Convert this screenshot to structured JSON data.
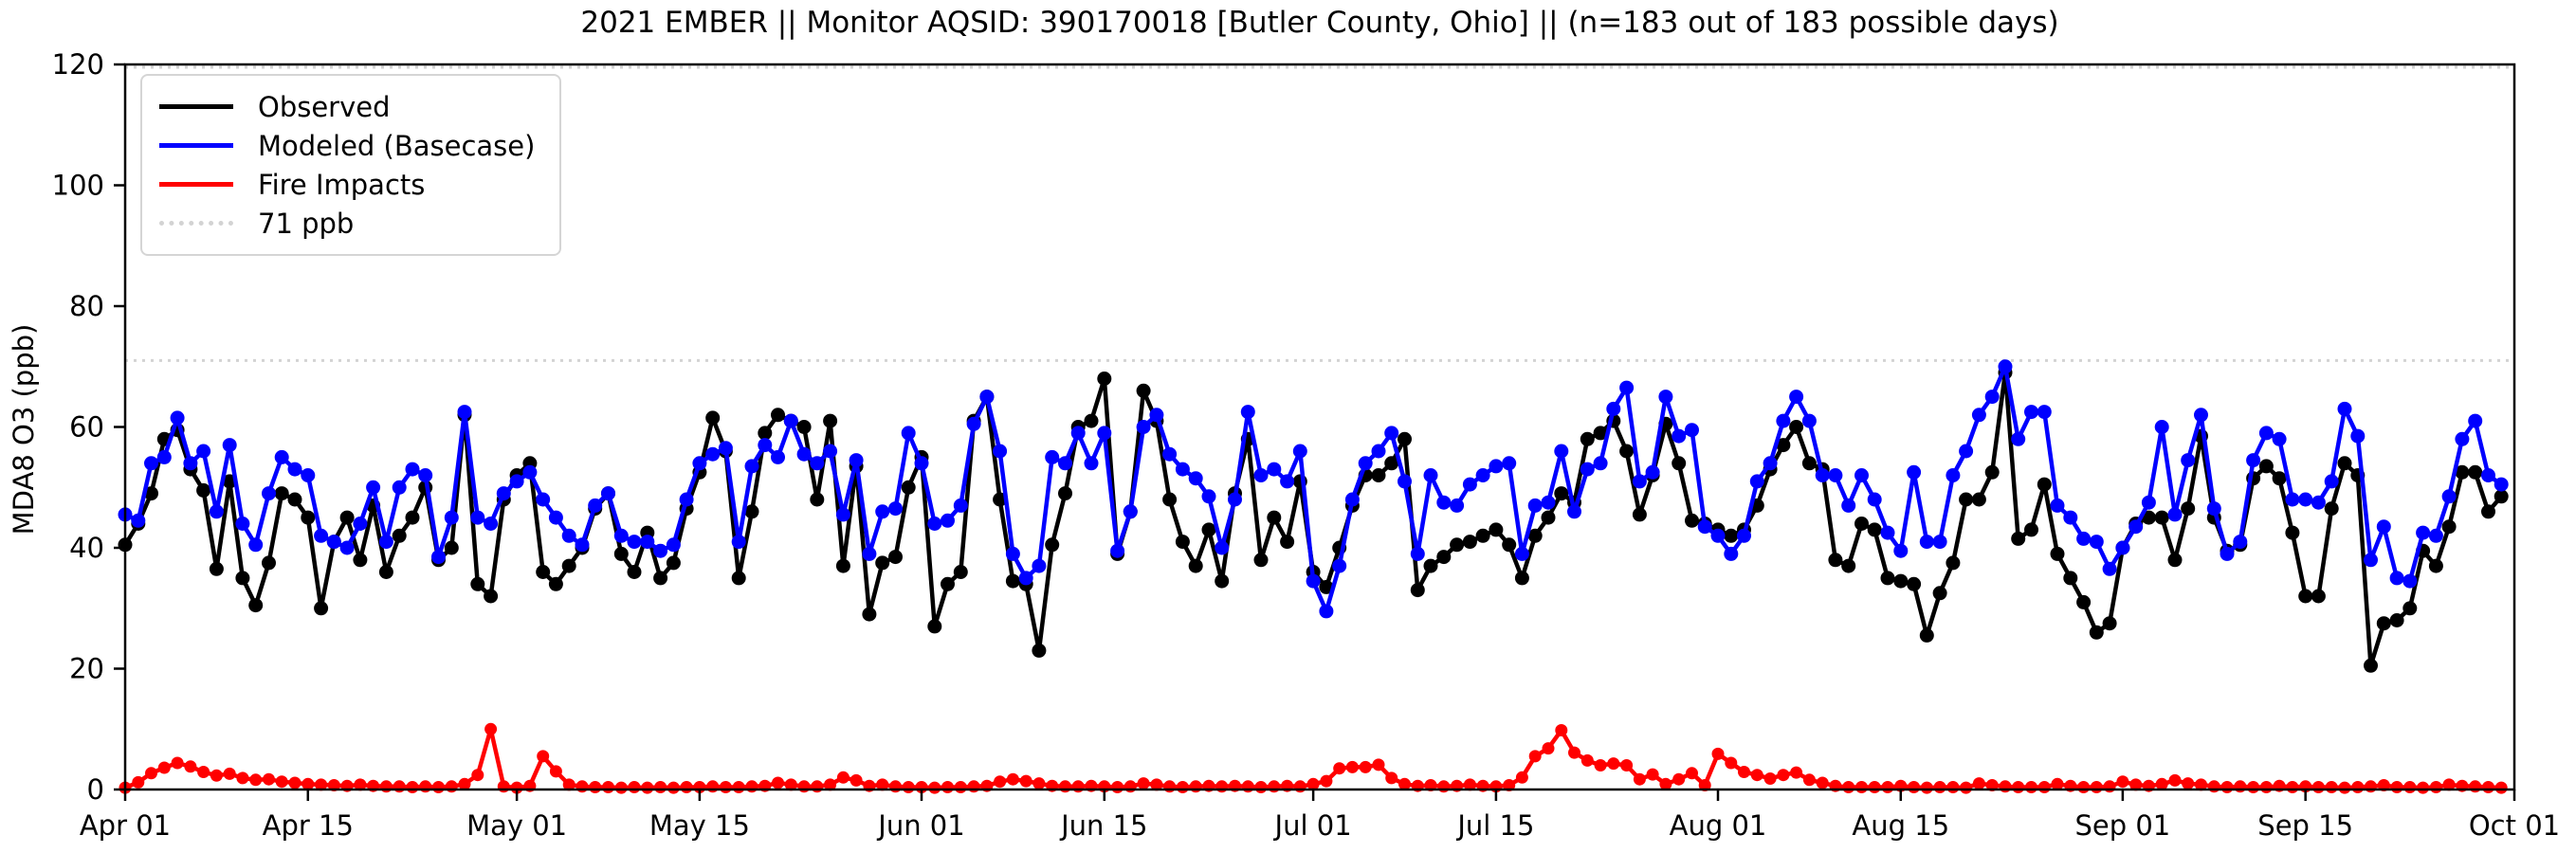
{
  "chart_data": {
    "type": "line",
    "title": "2021 EMBER || Monitor AQSID: 390170018 [Butler County, Ohio] || (n=183 out of 183 possible days)",
    "ylabel": "MDA8 O3 (ppb)",
    "ylim": [
      0,
      120
    ],
    "y_ticks": [
      0,
      20,
      40,
      60,
      80,
      100,
      120
    ],
    "xlim_days": [
      0,
      183
    ],
    "x_start_date": "Apr 01",
    "x_end_date": "Oct 01",
    "x_ticks": [
      {
        "label": "Apr 01",
        "day": 0
      },
      {
        "label": "Apr 15",
        "day": 14
      },
      {
        "label": "May 01",
        "day": 30
      },
      {
        "label": "May 15",
        "day": 44
      },
      {
        "label": "Jun 01",
        "day": 61
      },
      {
        "label": "Jun 15",
        "day": 75
      },
      {
        "label": "Jul 01",
        "day": 91
      },
      {
        "label": "Jul 15",
        "day": 105
      },
      {
        "label": "Aug 01",
        "day": 122
      },
      {
        "label": "Aug 15",
        "day": 136
      },
      {
        "label": "Sep 01",
        "day": 153
      },
      {
        "label": "Sep 15",
        "day": 167
      },
      {
        "label": "Oct 01",
        "day": 183
      }
    ],
    "grid": false,
    "legend_position": "upper left",
    "threshold": {
      "label": "71 ppb",
      "value": 71,
      "color": "#d3d3d3",
      "style": "dotted"
    },
    "top_reference_value": 120,
    "series": [
      {
        "name": "Observed",
        "color": "#000000",
        "values": [
          40.5,
          44,
          49,
          58,
          59.5,
          53,
          49.5,
          36.5,
          51,
          35,
          30.5,
          37.5,
          49,
          48,
          45,
          30,
          41,
          45,
          38,
          47,
          36,
          42,
          45,
          50,
          38,
          40,
          62,
          34,
          32,
          48,
          52,
          54,
          36,
          34,
          37,
          40,
          46.5,
          49,
          39,
          36,
          42.5,
          35,
          37.5,
          46.5,
          52.5,
          61.5,
          56,
          35,
          46,
          59,
          62,
          61,
          60,
          48,
          61,
          37,
          53.5,
          29,
          37.5,
          38.5,
          50,
          55,
          27,
          34,
          36,
          61,
          65,
          48,
          34.5,
          34,
          23,
          40.5,
          49,
          60,
          61,
          68,
          39,
          46,
          66,
          61,
          48,
          41,
          37,
          43,
          34.5,
          49,
          58,
          38,
          45,
          41,
          51,
          36,
          33.5,
          40,
          47,
          52,
          52,
          54,
          58,
          33,
          37,
          38.5,
          40.5,
          41,
          42,
          43,
          40.5,
          35,
          42,
          45,
          49,
          47.5,
          58,
          59,
          61,
          56,
          45.5,
          52,
          60.5,
          54,
          44.5,
          44,
          43,
          42,
          43,
          47,
          53,
          57,
          60,
          54,
          53,
          38,
          37,
          44,
          43,
          35,
          34.5,
          34,
          25.5,
          32.5,
          37.5,
          48,
          48,
          52.5,
          69,
          41.5,
          43,
          50.5,
          39,
          35,
          31,
          26,
          27.5,
          40,
          44,
          45,
          45,
          38,
          46.5,
          58.5,
          45,
          39.5,
          40.5,
          51.5,
          53.5,
          51.5,
          42.5,
          32,
          32,
          46.5,
          54,
          52,
          20.5,
          27.5,
          28,
          30,
          39.5,
          37,
          43.5,
          52.5,
          52.5,
          46,
          48.5
        ]
      },
      {
        "name": "Modeled (Basecase)",
        "color": "#0000ff",
        "values": [
          45.5,
          44.5,
          54,
          55,
          61.5,
          54,
          56,
          46,
          57,
          44,
          40.5,
          49,
          55,
          53,
          52,
          42,
          41,
          40,
          44,
          50,
          41,
          50,
          53,
          52,
          38.5,
          45,
          62.5,
          45,
          44,
          49,
          51,
          52.5,
          48,
          45,
          42,
          40.5,
          47,
          49,
          42,
          41,
          41,
          39.5,
          40.5,
          48,
          54,
          55.5,
          56.5,
          41,
          53.5,
          57,
          55,
          61,
          55.5,
          54,
          56,
          45.5,
          54.5,
          39,
          46,
          46.5,
          59,
          54,
          44,
          44.5,
          47,
          60.5,
          65,
          56,
          39,
          35,
          37,
          55,
          54,
          59,
          54,
          59,
          39.5,
          46,
          60,
          62,
          55.5,
          53,
          51.5,
          48.5,
          40,
          48,
          62.5,
          52,
          53,
          51,
          56,
          34.5,
          29.5,
          37,
          48,
          54,
          56,
          59,
          51,
          39,
          52,
          47.5,
          47,
          50.5,
          52,
          53.5,
          54,
          39,
          47,
          47.5,
          56,
          46,
          53,
          54,
          63,
          66.5,
          51,
          52.5,
          65,
          58.5,
          59.5,
          43.5,
          42,
          39,
          42,
          51,
          54,
          61,
          65,
          61,
          52,
          52,
          47,
          52,
          48,
          42.5,
          39.5,
          52.5,
          41,
          41,
          52,
          56,
          62,
          65,
          70,
          58,
          62.5,
          62.5,
          47,
          45,
          41.5,
          41,
          36.5,
          40,
          43.5,
          47.5,
          60,
          45.5,
          54.5,
          62,
          46.5,
          39,
          41,
          54.5,
          59,
          58,
          48,
          48,
          47.5,
          51,
          63,
          58.5,
          38,
          43.5,
          35,
          34.5,
          42.5,
          42,
          48.5,
          58,
          61,
          52,
          50.5
        ]
      },
      {
        "name": "Fire Impacts",
        "color": "#ff0000",
        "values": [
          0.3,
          1.2,
          2.7,
          3.6,
          4.4,
          3.8,
          2.9,
          2.3,
          2.6,
          1.9,
          1.6,
          1.7,
          1.3,
          1.1,
          0.9,
          0.8,
          0.7,
          0.6,
          0.8,
          0.6,
          0.5,
          0.5,
          0.4,
          0.5,
          0.4,
          0.5,
          0.9,
          2.4,
          10,
          0.5,
          0.3,
          0.6,
          5.5,
          3,
          0.8,
          0.5,
          0.4,
          0.4,
          0.3,
          0.4,
          0.3,
          0.4,
          0.3,
          0.4,
          0.4,
          0.5,
          0.4,
          0.4,
          0.5,
          0.6,
          1.1,
          0.8,
          0.5,
          0.5,
          0.8,
          2,
          1.5,
          0.6,
          0.8,
          0.5,
          0.4,
          0.4,
          0.3,
          0.4,
          0.4,
          0.5,
          0.6,
          1.3,
          1.7,
          1.4,
          1,
          0.6,
          0.5,
          0.5,
          0.6,
          0.5,
          0.4,
          0.5,
          1,
          0.8,
          0.5,
          0.4,
          0.5,
          0.6,
          0.5,
          0.6,
          0.5,
          0.4,
          0.5,
          0.6,
          0.5,
          0.9,
          1.4,
          3.5,
          3.7,
          3.7,
          4.1,
          1.9,
          0.9,
          0.6,
          0.7,
          0.5,
          0.6,
          0.8,
          0.6,
          0.5,
          0.7,
          2,
          5.5,
          6.8,
          9.8,
          6.1,
          4.8,
          4,
          4.3,
          4,
          1.7,
          2.5,
          0.9,
          1.7,
          2.7,
          0.7,
          5.9,
          4.4,
          2.9,
          2.4,
          1.8,
          2.4,
          2.8,
          1.6,
          1.1,
          0.6,
          0.4,
          0.4,
          0.4,
          0.4,
          0.6,
          0.4,
          0.3,
          0.4,
          0.4,
          0.3,
          1,
          0.7,
          0.5,
          0.4,
          0.4,
          0.4,
          0.9,
          0.6,
          0.4,
          0.4,
          0.5,
          1.3,
          0.8,
          0.6,
          0.9,
          1.5,
          1,
          0.8,
          0.5,
          0.4,
          0.5,
          0.4,
          0.4,
          0.6,
          0.4,
          0.5,
          0.4,
          0.4,
          0.3,
          0.4,
          0.5,
          0.7,
          0.4,
          0.4,
          0.3,
          0.4,
          0.8,
          0.6,
          0.5,
          0.4,
          0.3
        ]
      }
    ]
  },
  "layout_colors": {
    "axis": "#000000",
    "background": "#ffffff",
    "legend_border": "#d5d5d5"
  }
}
